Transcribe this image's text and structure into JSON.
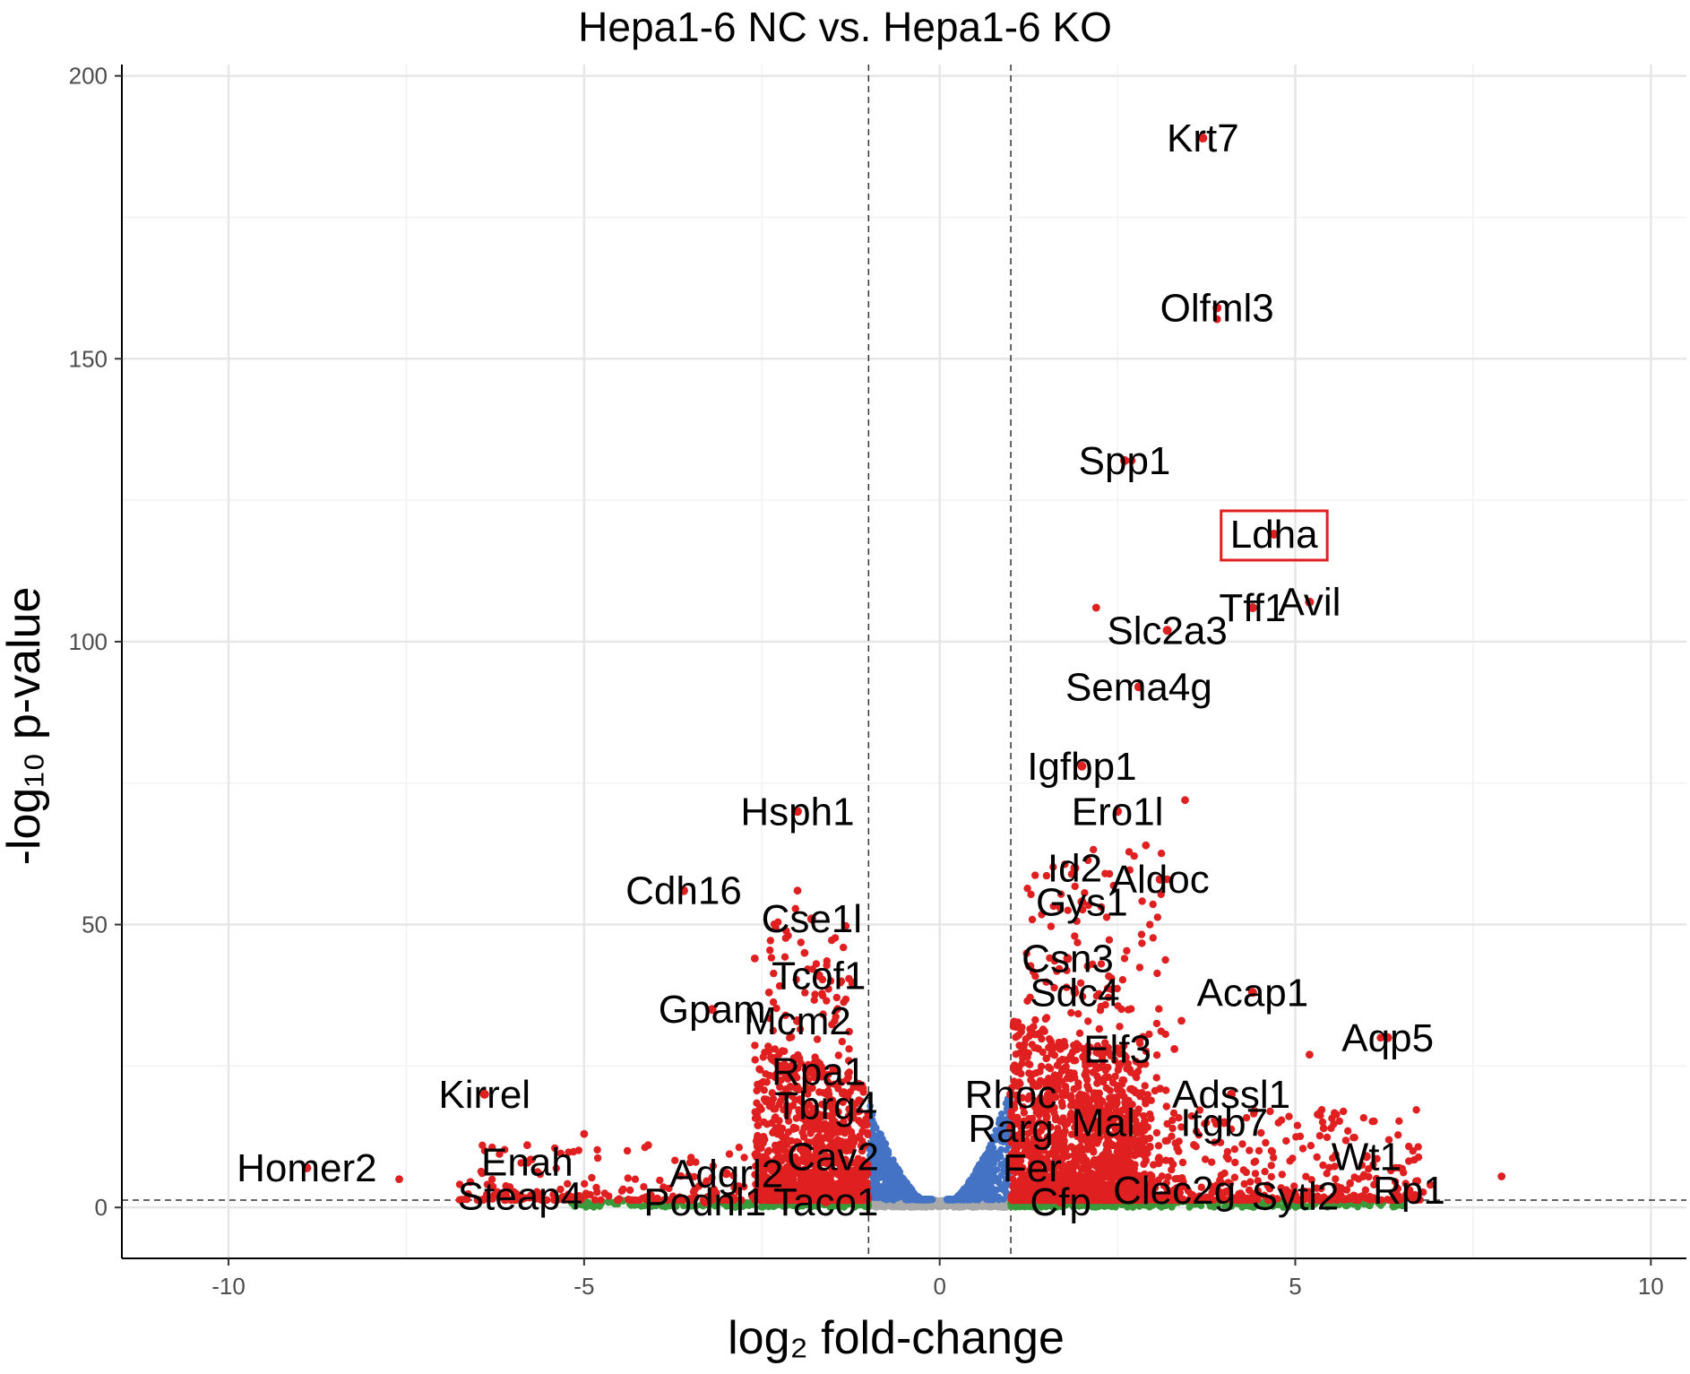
{
  "chart_data": {
    "type": "scatter",
    "title": "Hepa1-6 NC vs. Hepa1-6 KO",
    "xlabel": "log₂ fold-change",
    "ylabel": "-log₁₀ p-value",
    "xlim": [
      -11.5,
      10.5
    ],
    "ylim": [
      -9,
      202
    ],
    "x_ticks": [
      -10,
      -5,
      0,
      5,
      10
    ],
    "y_ticks": [
      0,
      50,
      100,
      150,
      200
    ],
    "x_tick_labels": [
      "-10",
      "-5",
      "0",
      "5",
      "10"
    ],
    "y_tick_labels": [
      "0",
      "50",
      "100",
      "150",
      "200"
    ],
    "fc_threshold": [
      -1,
      1
    ],
    "p_threshold": 1.3,
    "grid": true,
    "highlight_gene": "Ldha",
    "colors": {
      "significant": "#e02020",
      "pvalue_only": "#4472c4",
      "fc_only": "#3a9a3a",
      "not_significant": "#a8a8a8",
      "highlight_box": "#e02020"
    },
    "genes": [
      {
        "label": "Krt7",
        "x": 3.7,
        "y": 189
      },
      {
        "label": "Olfml3",
        "x": 3.9,
        "y": 159
      },
      {
        "label": "Spp1",
        "x": 2.6,
        "y": 132
      },
      {
        "label": "Ldha",
        "x": 4.7,
        "y": 119
      },
      {
        "label": "Tff1",
        "x": 4.4,
        "y": 106
      },
      {
        "label": "Avil",
        "x": 5.2,
        "y": 107
      },
      {
        "label": "Slc2a3",
        "x": 3.2,
        "y": 102
      },
      {
        "label": "Sema4g",
        "x": 2.8,
        "y": 92
      },
      {
        "label": "Igfbp1",
        "x": 2.0,
        "y": 78
      },
      {
        "label": "Ero1l",
        "x": 2.5,
        "y": 70
      },
      {
        "label": "Id2",
        "x": 1.9,
        "y": 60
      },
      {
        "label": "Aldoc",
        "x": 3.1,
        "y": 58
      },
      {
        "label": "Gys1",
        "x": 2.0,
        "y": 54
      },
      {
        "label": "Csn3",
        "x": 1.8,
        "y": 44
      },
      {
        "label": "Sdc4",
        "x": 1.9,
        "y": 38
      },
      {
        "label": "Acap1",
        "x": 4.4,
        "y": 38
      },
      {
        "label": "Elf3",
        "x": 2.5,
        "y": 28
      },
      {
        "label": "Aqp5",
        "x": 6.3,
        "y": 30
      },
      {
        "label": "Rhoc",
        "x": 1.0,
        "y": 20
      },
      {
        "label": "Adssl1",
        "x": 4.1,
        "y": 20
      },
      {
        "label": "Rarg",
        "x": 1.0,
        "y": 14
      },
      {
        "label": "Mal",
        "x": 2.3,
        "y": 15
      },
      {
        "label": "Itgb7",
        "x": 4.0,
        "y": 15
      },
      {
        "label": "Fer",
        "x": 1.3,
        "y": 7
      },
      {
        "label": "Wt1",
        "x": 6.0,
        "y": 9
      },
      {
        "label": "Cfp",
        "x": 1.7,
        "y": 1
      },
      {
        "label": "Clec2g",
        "x": 3.3,
        "y": 3
      },
      {
        "label": "Sytl2",
        "x": 5.0,
        "y": 2
      },
      {
        "label": "Rp1",
        "x": 6.6,
        "y": 3
      },
      {
        "label": "Hsph1",
        "x": -2.0,
        "y": 70
      },
      {
        "label": "Cdh16",
        "x": -3.6,
        "y": 56
      },
      {
        "label": "Cse1l",
        "x": -1.8,
        "y": 51
      },
      {
        "label": "Tcof1",
        "x": -1.7,
        "y": 41
      },
      {
        "label": "Gpam",
        "x": -3.2,
        "y": 35
      },
      {
        "label": "Mcm2",
        "x": -2.0,
        "y": 33
      },
      {
        "label": "Rpa1",
        "x": -1.7,
        "y": 24
      },
      {
        "label": "Tbrg4",
        "x": -1.6,
        "y": 18
      },
      {
        "label": "Kirrel",
        "x": -6.4,
        "y": 20
      },
      {
        "label": "Cav2",
        "x": -1.5,
        "y": 9
      },
      {
        "label": "Homer2",
        "x": -8.9,
        "y": 7
      },
      {
        "label": "Enah",
        "x": -5.8,
        "y": 8
      },
      {
        "label": "Adgrl2",
        "x": -3.0,
        "y": 6
      },
      {
        "label": "Steap4",
        "x": -5.9,
        "y": 2
      },
      {
        "label": "Podnl1",
        "x": -3.3,
        "y": 1
      },
      {
        "label": "Taco1",
        "x": -1.6,
        "y": 1
      }
    ]
  }
}
